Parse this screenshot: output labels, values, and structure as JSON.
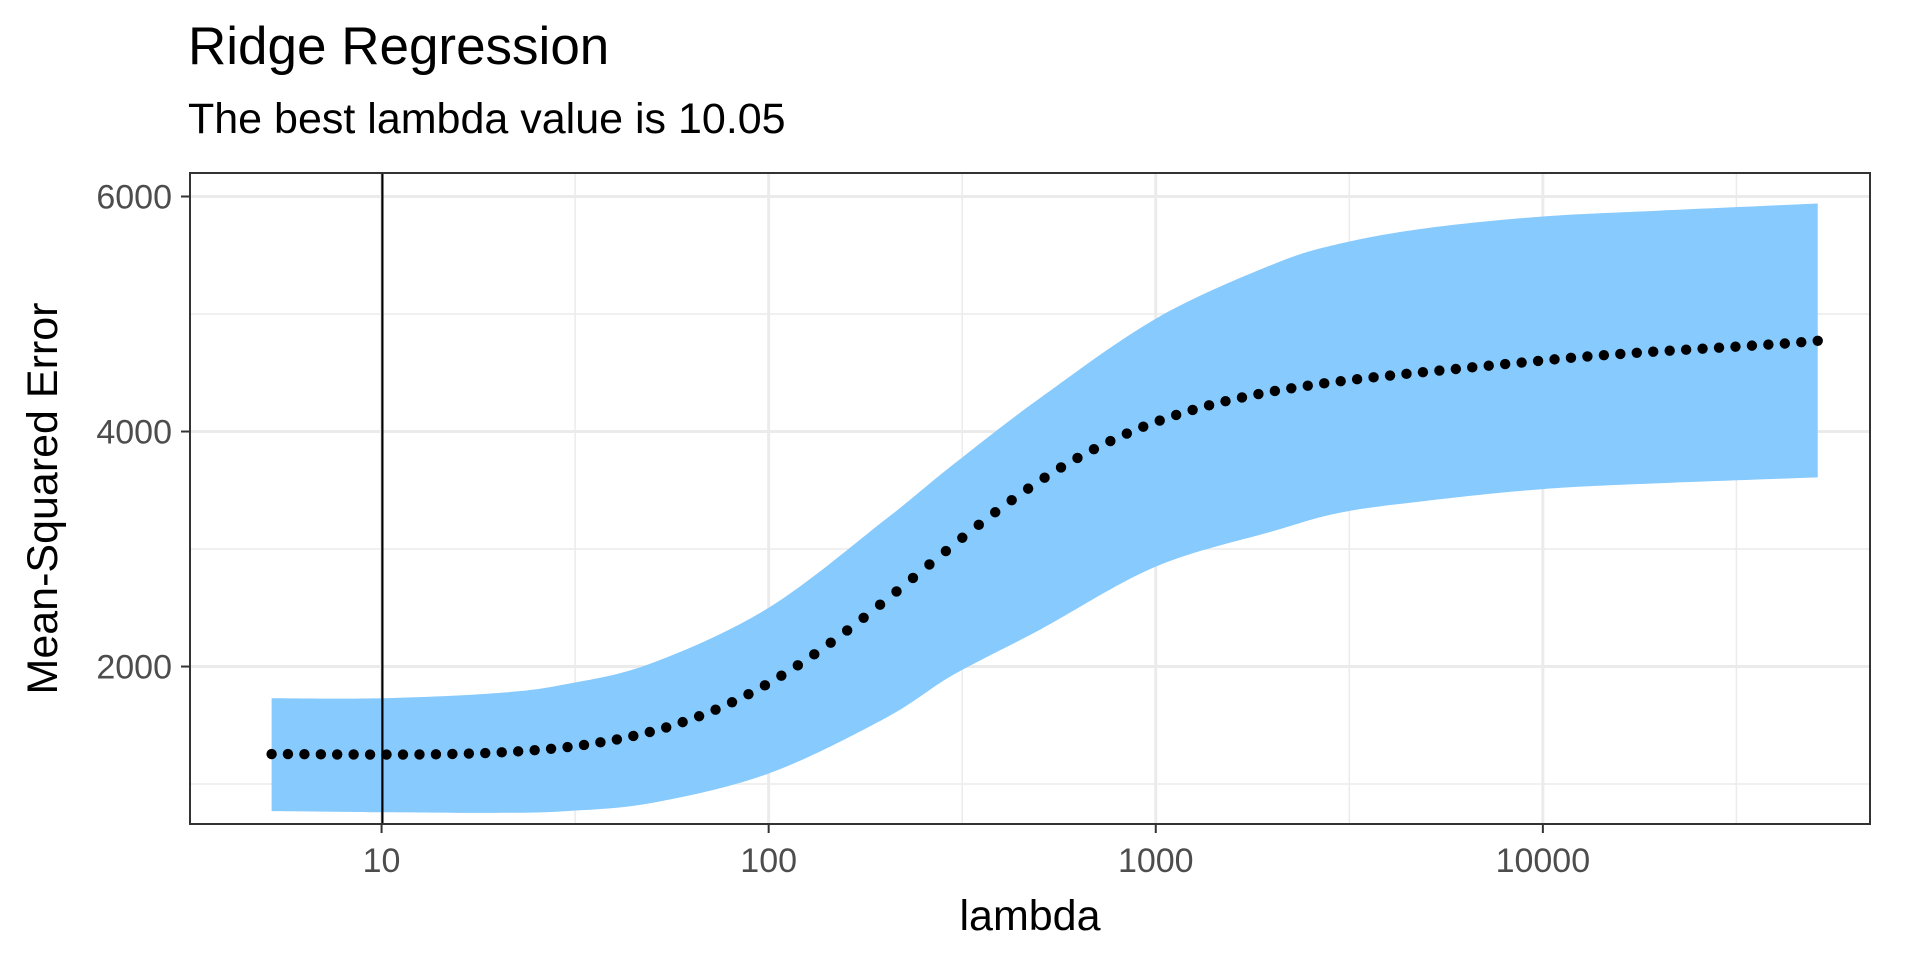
{
  "chart_data": {
    "type": "scatter",
    "title": "Ridge Regression",
    "subtitle": "The best lambda value is 10.05",
    "xlabel": "lambda",
    "ylabel": "Mean-Squared Error",
    "x_scale": "log10",
    "xlim": [
      3.2,
      70000
    ],
    "ylim": [
      660,
      6200
    ],
    "x_ticks": [
      10,
      100,
      1000,
      10000
    ],
    "x_tick_labels": [
      "10",
      "100",
      "1000",
      "10000"
    ],
    "y_ticks": [
      2000,
      4000,
      6000
    ],
    "y_tick_labels": [
      "2000",
      "4000",
      "6000"
    ],
    "grid": true,
    "best_lambda": 10.05,
    "band_color": "#87CAFD",
    "point_color": "#000000",
    "frame_color": "#333333",
    "points": [
      {
        "x": 5.2,
        "y": 1255
      },
      {
        "x": 5.73,
        "y": 1255
      },
      {
        "x": 6.32,
        "y": 1254
      },
      {
        "x": 6.97,
        "y": 1253
      },
      {
        "x": 7.68,
        "y": 1252
      },
      {
        "x": 8.47,
        "y": 1252
      },
      {
        "x": 9.34,
        "y": 1251
      },
      {
        "x": 10.3,
        "y": 1251
      },
      {
        "x": 11.36,
        "y": 1251
      },
      {
        "x": 12.53,
        "y": 1252
      },
      {
        "x": 13.82,
        "y": 1253
      },
      {
        "x": 15.24,
        "y": 1256
      },
      {
        "x": 16.81,
        "y": 1259
      },
      {
        "x": 18.53,
        "y": 1264
      },
      {
        "x": 20.44,
        "y": 1270
      },
      {
        "x": 22.54,
        "y": 1278
      },
      {
        "x": 24.86,
        "y": 1288
      },
      {
        "x": 27.41,
        "y": 1300
      },
      {
        "x": 30.23,
        "y": 1315
      },
      {
        "x": 33.34,
        "y": 1333
      },
      {
        "x": 36.76,
        "y": 1355
      },
      {
        "x": 40.54,
        "y": 1380
      },
      {
        "x": 44.71,
        "y": 1409
      },
      {
        "x": 49.3,
        "y": 1443
      },
      {
        "x": 54.37,
        "y": 1482
      },
      {
        "x": 59.96,
        "y": 1527
      },
      {
        "x": 66.12,
        "y": 1577
      },
      {
        "x": 72.92,
        "y": 1633
      },
      {
        "x": 80.42,
        "y": 1696
      },
      {
        "x": 88.68,
        "y": 1765
      },
      {
        "x": 97.8,
        "y": 1840
      },
      {
        "x": 107.85,
        "y": 1922
      },
      {
        "x": 118.94,
        "y": 2010
      },
      {
        "x": 131.17,
        "y": 2104
      },
      {
        "x": 144.65,
        "y": 2203
      },
      {
        "x": 159.52,
        "y": 2307
      },
      {
        "x": 175.92,
        "y": 2415
      },
      {
        "x": 194.0,
        "y": 2526
      },
      {
        "x": 213.95,
        "y": 2639
      },
      {
        "x": 235.94,
        "y": 2754
      },
      {
        "x": 260.19,
        "y": 2869
      },
      {
        "x": 286.94,
        "y": 2983
      },
      {
        "x": 316.44,
        "y": 3096
      },
      {
        "x": 348.97,
        "y": 3206
      },
      {
        "x": 384.84,
        "y": 3313
      },
      {
        "x": 424.4,
        "y": 3416
      },
      {
        "x": 468.03,
        "y": 3514
      },
      {
        "x": 516.14,
        "y": 3607
      },
      {
        "x": 569.19,
        "y": 3694
      },
      {
        "x": 627.7,
        "y": 3775
      },
      {
        "x": 692.23,
        "y": 3850
      },
      {
        "x": 763.39,
        "y": 3919
      },
      {
        "x": 841.87,
        "y": 3983
      },
      {
        "x": 928.41,
        "y": 4041
      },
      {
        "x": 1023.85,
        "y": 4093
      },
      {
        "x": 1129.1,
        "y": 4141
      },
      {
        "x": 1245.16,
        "y": 4184
      },
      {
        "x": 1373.16,
        "y": 4223
      },
      {
        "x": 1514.32,
        "y": 4258
      },
      {
        "x": 1669.99,
        "y": 4290
      },
      {
        "x": 1841.66,
        "y": 4319
      },
      {
        "x": 2030.97,
        "y": 4345
      },
      {
        "x": 2239.75,
        "y": 4368
      },
      {
        "x": 2470.0,
        "y": 4390
      },
      {
        "x": 2723.92,
        "y": 4410
      },
      {
        "x": 3003.93,
        "y": 4428
      },
      {
        "x": 3312.73,
        "y": 4445
      },
      {
        "x": 3653.27,
        "y": 4461
      },
      {
        "x": 4028.82,
        "y": 4476
      },
      {
        "x": 4442.98,
        "y": 4491
      },
      {
        "x": 4899.7,
        "y": 4505
      },
      {
        "x": 5403.38,
        "y": 4519
      },
      {
        "x": 5958.83,
        "y": 4532
      },
      {
        "x": 6571.38,
        "y": 4546
      },
      {
        "x": 7246.9,
        "y": 4560
      },
      {
        "x": 7991.87,
        "y": 4574
      },
      {
        "x": 8813.42,
        "y": 4587
      },
      {
        "x": 9719.41,
        "y": 4601
      },
      {
        "x": 10718.54,
        "y": 4614
      },
      {
        "x": 11820.38,
        "y": 4627
      },
      {
        "x": 13035.48,
        "y": 4639
      },
      {
        "x": 14375.5,
        "y": 4650
      },
      {
        "x": 15853.27,
        "y": 4660
      },
      {
        "x": 17482.95,
        "y": 4670
      },
      {
        "x": 19280.17,
        "y": 4679
      },
      {
        "x": 21262.15,
        "y": 4688
      },
      {
        "x": 23447.87,
        "y": 4696
      },
      {
        "x": 25858.26,
        "y": 4705
      },
      {
        "x": 28516.44,
        "y": 4713
      },
      {
        "x": 31447.88,
        "y": 4722
      },
      {
        "x": 34680.66,
        "y": 4731
      },
      {
        "x": 38245.78,
        "y": 4740
      },
      {
        "x": 42177.39,
        "y": 4749
      },
      {
        "x": 46513.16,
        "y": 4760
      },
      {
        "x": 51294.64,
        "y": 4772
      }
    ],
    "band_upper": [
      {
        "x": 5.2,
        "y": 1730
      },
      {
        "x": 10,
        "y": 1730
      },
      {
        "x": 20,
        "y": 1775
      },
      {
        "x": 30,
        "y": 1850
      },
      {
        "x": 50,
        "y": 2030
      },
      {
        "x": 100,
        "y": 2500
      },
      {
        "x": 200,
        "y": 3250
      },
      {
        "x": 300,
        "y": 3720
      },
      {
        "x": 500,
        "y": 4280
      },
      {
        "x": 1000,
        "y": 4960
      },
      {
        "x": 2000,
        "y": 5420
      },
      {
        "x": 3000,
        "y": 5600
      },
      {
        "x": 5000,
        "y": 5730
      },
      {
        "x": 10000,
        "y": 5830
      },
      {
        "x": 20000,
        "y": 5880
      },
      {
        "x": 51294.64,
        "y": 5940
      }
    ],
    "band_lower": [
      {
        "x": 5.2,
        "y": 770
      },
      {
        "x": 10,
        "y": 760
      },
      {
        "x": 20,
        "y": 755
      },
      {
        "x": 30,
        "y": 770
      },
      {
        "x": 50,
        "y": 840
      },
      {
        "x": 100,
        "y": 1090
      },
      {
        "x": 200,
        "y": 1560
      },
      {
        "x": 300,
        "y": 1930
      },
      {
        "x": 500,
        "y": 2310
      },
      {
        "x": 1000,
        "y": 2850
      },
      {
        "x": 2000,
        "y": 3150
      },
      {
        "x": 3000,
        "y": 3310
      },
      {
        "x": 5000,
        "y": 3410
      },
      {
        "x": 10000,
        "y": 3510
      },
      {
        "x": 20000,
        "y": 3560
      },
      {
        "x": 51294.64,
        "y": 3610
      }
    ]
  }
}
